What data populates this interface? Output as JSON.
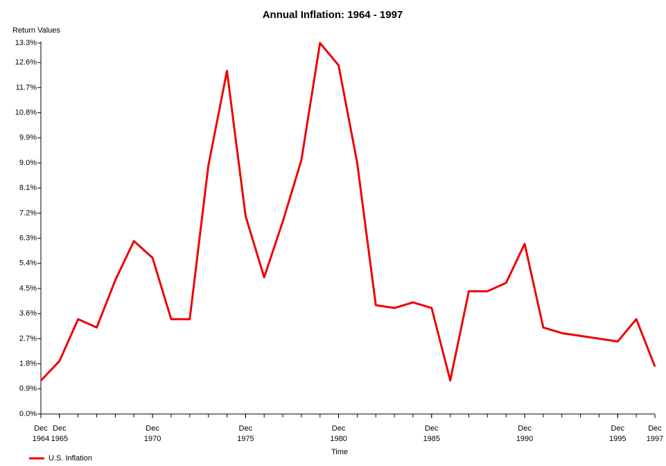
{
  "chart_data": {
    "type": "line",
    "title": "Annual Inflation: 1964 - 1997",
    "y_label": "Return Values",
    "x_label": "Time",
    "x": [
      1964,
      1965,
      1966,
      1967,
      1968,
      1969,
      1970,
      1971,
      1972,
      1973,
      1974,
      1975,
      1976,
      1977,
      1978,
      1979,
      1980,
      1981,
      1982,
      1983,
      1984,
      1985,
      1986,
      1987,
      1988,
      1989,
      1990,
      1991,
      1992,
      1993,
      1994,
      1995,
      1996,
      1997
    ],
    "series": [
      {
        "name": "U.S. Inflation",
        "color": "#ee0000",
        "values": [
          1.2,
          1.9,
          3.4,
          3.1,
          4.8,
          6.2,
          5.6,
          3.4,
          3.4,
          8.9,
          12.3,
          7.1,
          4.9,
          6.9,
          9.1,
          13.3,
          12.5,
          9.0,
          3.9,
          3.8,
          4.0,
          3.8,
          1.2,
          4.4,
          4.4,
          4.7,
          6.1,
          3.1,
          2.9,
          2.8,
          2.7,
          2.6,
          3.4,
          1.7
        ]
      }
    ],
    "xlim": [
      1964,
      1997
    ],
    "xticks": [
      {
        "value": 1964,
        "label": "Dec 1964"
      },
      {
        "value": 1965,
        "label": "Dec 1965"
      },
      {
        "value": 1970,
        "label": "Dec 1970"
      },
      {
        "value": 1975,
        "label": "Dec 1975"
      },
      {
        "value": 1980,
        "label": "Dec 1980"
      },
      {
        "value": 1985,
        "label": "Dec 1985"
      },
      {
        "value": 1990,
        "label": "Dec 1990"
      },
      {
        "value": 1995,
        "label": "Dec 1995"
      },
      {
        "value": 1997,
        "label": "Dec 1997"
      }
    ],
    "ylim": [
      0,
      13.3
    ],
    "yticks": [
      {
        "value": 0,
        "label": "0.0%"
      },
      {
        "value": 0.9,
        "label": "0.9%"
      },
      {
        "value": 1.8,
        "label": "1.8%"
      },
      {
        "value": 2.7,
        "label": "2.7%"
      },
      {
        "value": 3.6,
        "label": "3.6%"
      },
      {
        "value": 4.5,
        "label": "4.5%"
      },
      {
        "value": 5.4,
        "label": "5.4%"
      },
      {
        "value": 6.3,
        "label": "6.3%"
      },
      {
        "value": 7.2,
        "label": "7.2%"
      },
      {
        "value": 8.1,
        "label": "8.1%"
      },
      {
        "value": 9.0,
        "label": "9.0%"
      },
      {
        "value": 9.9,
        "label": "9.9%"
      },
      {
        "value": 10.8,
        "label": "10.8%"
      },
      {
        "value": 11.7,
        "label": "11.7%"
      },
      {
        "value": 12.6,
        "label": "12.6%"
      },
      {
        "value": 13.3,
        "label": "13.3%"
      }
    ],
    "legend": "bottom-left"
  }
}
